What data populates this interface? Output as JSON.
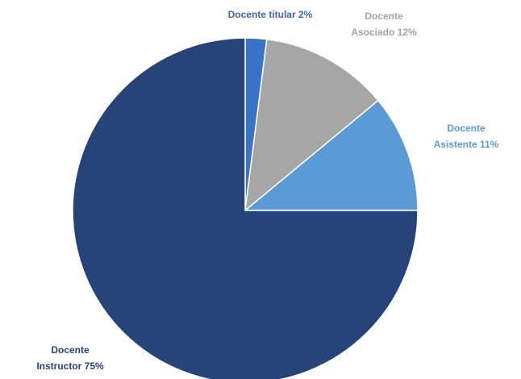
{
  "chart_data": {
    "type": "pie",
    "title": "",
    "slices": [
      {
        "label_lines": [
          "Docente titular 2%"
        ],
        "value": 2,
        "color": "#3a74c8",
        "label_color": "#3a68b8"
      },
      {
        "label_lines": [
          "Docente",
          "Asociado 12%"
        ],
        "value": 12,
        "color": "#a6a6a6",
        "label_color": "#a3a3a3"
      },
      {
        "label_lines": [
          "Docente",
          "Asistente 11%"
        ],
        "value": 11,
        "color": "#5b9bd5",
        "label_color": "#5b9bd5"
      },
      {
        "label_lines": [
          "Docente",
          "Instructor 75%"
        ],
        "value": 75,
        "color": "#264478",
        "label_color": "#264478"
      }
    ],
    "start_angle_deg": 0,
    "direction": "clockwise",
    "legend": "none"
  }
}
